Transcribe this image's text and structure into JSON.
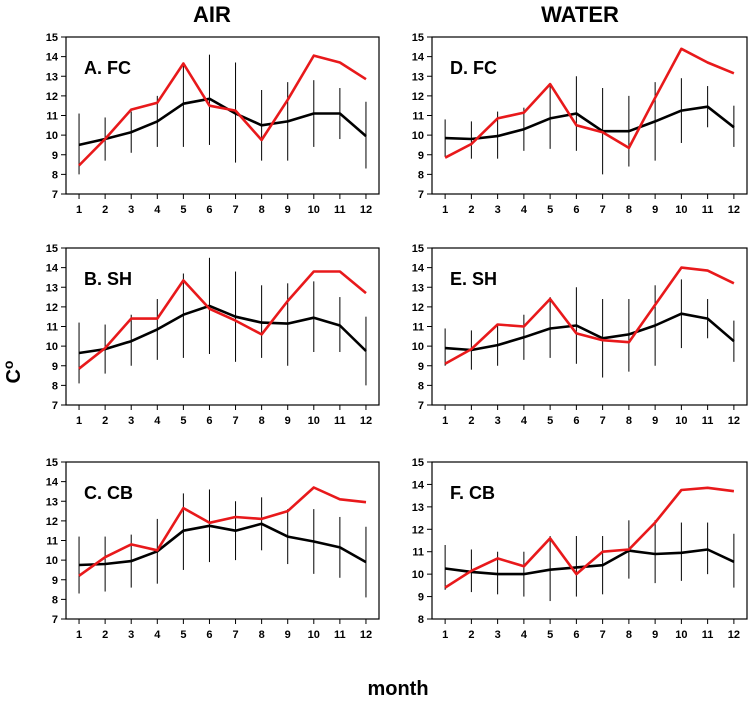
{
  "column_titles": [
    "AIR",
    "WATER"
  ],
  "xlabel": "month",
  "ylabel": "C",
  "ylabel_sup": "o",
  "colors": {
    "black_series": "#000000",
    "red_series": "#e8191b",
    "error_bar": "#000000"
  },
  "chart_data": [
    {
      "type": "line",
      "panel": "A. FC",
      "column": "AIR",
      "x": [
        1,
        2,
        3,
        4,
        5,
        6,
        7,
        8,
        9,
        10,
        11,
        12
      ],
      "ylim": [
        7,
        15
      ],
      "yticks": [
        7,
        8,
        9,
        10,
        11,
        12,
        13,
        14,
        15
      ],
      "series": [
        {
          "values": [
            9.5,
            9.8,
            10.15,
            10.7,
            11.6,
            11.85,
            11.1,
            10.5,
            10.7,
            11.1,
            11.1,
            9.95
          ],
          "error_low": [
            8.0,
            8.7,
            9.1,
            9.4,
            9.4,
            9.5,
            8.6,
            8.7,
            8.7,
            9.4,
            9.8,
            8.3
          ],
          "error_high": [
            11.1,
            10.9,
            11.2,
            12.0,
            13.7,
            14.1,
            13.7,
            12.3,
            12.7,
            12.8,
            12.4,
            11.7
          ]
        },
        {
          "values": [
            8.45,
            9.8,
            11.3,
            11.65,
            13.65,
            11.5,
            11.25,
            9.75,
            11.8,
            14.05,
            13.7,
            12.85
          ]
        }
      ]
    },
    {
      "type": "line",
      "panel": "D. FC",
      "column": "WATER",
      "x": [
        1,
        2,
        3,
        4,
        5,
        6,
        7,
        8,
        9,
        10,
        11,
        12
      ],
      "ylim": [
        7,
        15
      ],
      "yticks": [
        7,
        8,
        9,
        10,
        11,
        12,
        13,
        14,
        15
      ],
      "series": [
        {
          "values": [
            9.85,
            9.8,
            9.95,
            10.3,
            10.85,
            11.1,
            10.2,
            10.2,
            10.7,
            11.25,
            11.45,
            10.4
          ],
          "error_low": [
            8.9,
            8.8,
            8.8,
            9.2,
            9.3,
            9.2,
            8.0,
            8.4,
            8.7,
            9.6,
            10.4,
            9.4
          ],
          "error_high": [
            10.8,
            10.7,
            11.2,
            11.4,
            12.6,
            13.0,
            12.4,
            12.0,
            12.7,
            12.9,
            12.5,
            11.5
          ]
        },
        {
          "values": [
            8.85,
            9.55,
            10.85,
            11.15,
            12.6,
            10.5,
            10.15,
            9.35,
            11.9,
            14.4,
            13.7,
            13.15
          ]
        }
      ]
    },
    {
      "type": "line",
      "panel": "B. SH",
      "column": "AIR",
      "x": [
        1,
        2,
        3,
        4,
        5,
        6,
        7,
        8,
        9,
        10,
        11,
        12
      ],
      "ylim": [
        7,
        15
      ],
      "yticks": [
        7,
        8,
        9,
        10,
        11,
        12,
        13,
        14,
        15
      ],
      "series": [
        {
          "values": [
            9.65,
            9.85,
            10.25,
            10.85,
            11.6,
            12.05,
            11.5,
            11.2,
            11.15,
            11.45,
            11.05,
            9.75
          ],
          "error_low": [
            8.1,
            8.6,
            9.0,
            9.3,
            9.4,
            9.6,
            9.2,
            9.4,
            9.0,
            9.7,
            9.7,
            8.0
          ],
          "error_high": [
            11.2,
            11.1,
            11.6,
            12.4,
            13.7,
            14.5,
            13.8,
            13.1,
            13.2,
            13.3,
            12.5,
            11.5
          ]
        },
        {
          "values": [
            8.85,
            9.9,
            11.4,
            11.4,
            13.35,
            11.9,
            11.3,
            10.6,
            12.3,
            13.8,
            13.8,
            12.7
          ]
        }
      ]
    },
    {
      "type": "line",
      "panel": "E. SH",
      "column": "WATER",
      "x": [
        1,
        2,
        3,
        4,
        5,
        6,
        7,
        8,
        9,
        10,
        11,
        12
      ],
      "ylim": [
        7,
        15
      ],
      "yticks": [
        7,
        8,
        9,
        10,
        11,
        12,
        13,
        14,
        15
      ],
      "series": [
        {
          "values": [
            9.9,
            9.8,
            10.05,
            10.45,
            10.9,
            11.05,
            10.4,
            10.6,
            11.05,
            11.65,
            11.4,
            10.25
          ],
          "error_low": [
            9.0,
            8.8,
            9.0,
            9.3,
            9.4,
            9.1,
            8.4,
            8.7,
            9.0,
            9.9,
            10.4,
            9.2
          ],
          "error_high": [
            10.9,
            10.8,
            11.1,
            11.6,
            12.5,
            13.0,
            12.4,
            12.4,
            13.1,
            13.4,
            12.4,
            11.3
          ]
        },
        {
          "values": [
            9.1,
            9.85,
            11.1,
            11.0,
            12.4,
            10.65,
            10.3,
            10.2,
            12.1,
            14.0,
            13.85,
            13.2
          ]
        }
      ]
    },
    {
      "type": "line",
      "panel": "C. CB",
      "column": "AIR",
      "x": [
        1,
        2,
        3,
        4,
        5,
        6,
        7,
        8,
        9,
        10,
        11,
        12
      ],
      "ylim": [
        7,
        15
      ],
      "yticks": [
        7,
        8,
        9,
        10,
        11,
        12,
        13,
        14,
        15
      ],
      "series": [
        {
          "values": [
            9.75,
            9.8,
            9.95,
            10.45,
            11.5,
            11.75,
            11.5,
            11.85,
            11.2,
            10.95,
            10.65,
            9.9
          ],
          "error_low": [
            8.3,
            8.4,
            8.6,
            8.8,
            9.5,
            9.9,
            10.0,
            10.5,
            9.8,
            9.3,
            9.1,
            8.1
          ],
          "error_high": [
            11.2,
            11.2,
            11.3,
            12.1,
            13.4,
            13.6,
            13.0,
            13.2,
            12.6,
            12.6,
            12.2,
            11.7
          ]
        },
        {
          "values": [
            9.2,
            10.15,
            10.8,
            10.5,
            12.65,
            11.9,
            12.2,
            12.1,
            12.5,
            13.7,
            13.1,
            12.95
          ]
        }
      ]
    },
    {
      "type": "line",
      "panel": "F. CB",
      "column": "WATER",
      "x": [
        1,
        2,
        3,
        4,
        5,
        6,
        7,
        8,
        9,
        10,
        11,
        12
      ],
      "ylim": [
        8,
        15
      ],
      "yticks": [
        8,
        9,
        10,
        11,
        12,
        13,
        14,
        15
      ],
      "series": [
        {
          "values": [
            10.25,
            10.1,
            10.0,
            10.0,
            10.2,
            10.3,
            10.4,
            11.05,
            10.9,
            10.95,
            11.1,
            10.55
          ],
          "error_low": [
            9.3,
            9.2,
            9.1,
            9.0,
            8.8,
            9.0,
            9.1,
            9.8,
            9.6,
            9.7,
            10.0,
            9.4
          ],
          "error_high": [
            11.3,
            11.1,
            11.0,
            11.0,
            11.7,
            11.7,
            11.7,
            12.4,
            12.4,
            12.3,
            12.3,
            11.8
          ]
        },
        {
          "values": [
            9.4,
            10.15,
            10.7,
            10.35,
            11.6,
            10.0,
            11.0,
            11.1,
            12.3,
            13.75,
            13.85,
            13.7
          ]
        }
      ]
    }
  ]
}
